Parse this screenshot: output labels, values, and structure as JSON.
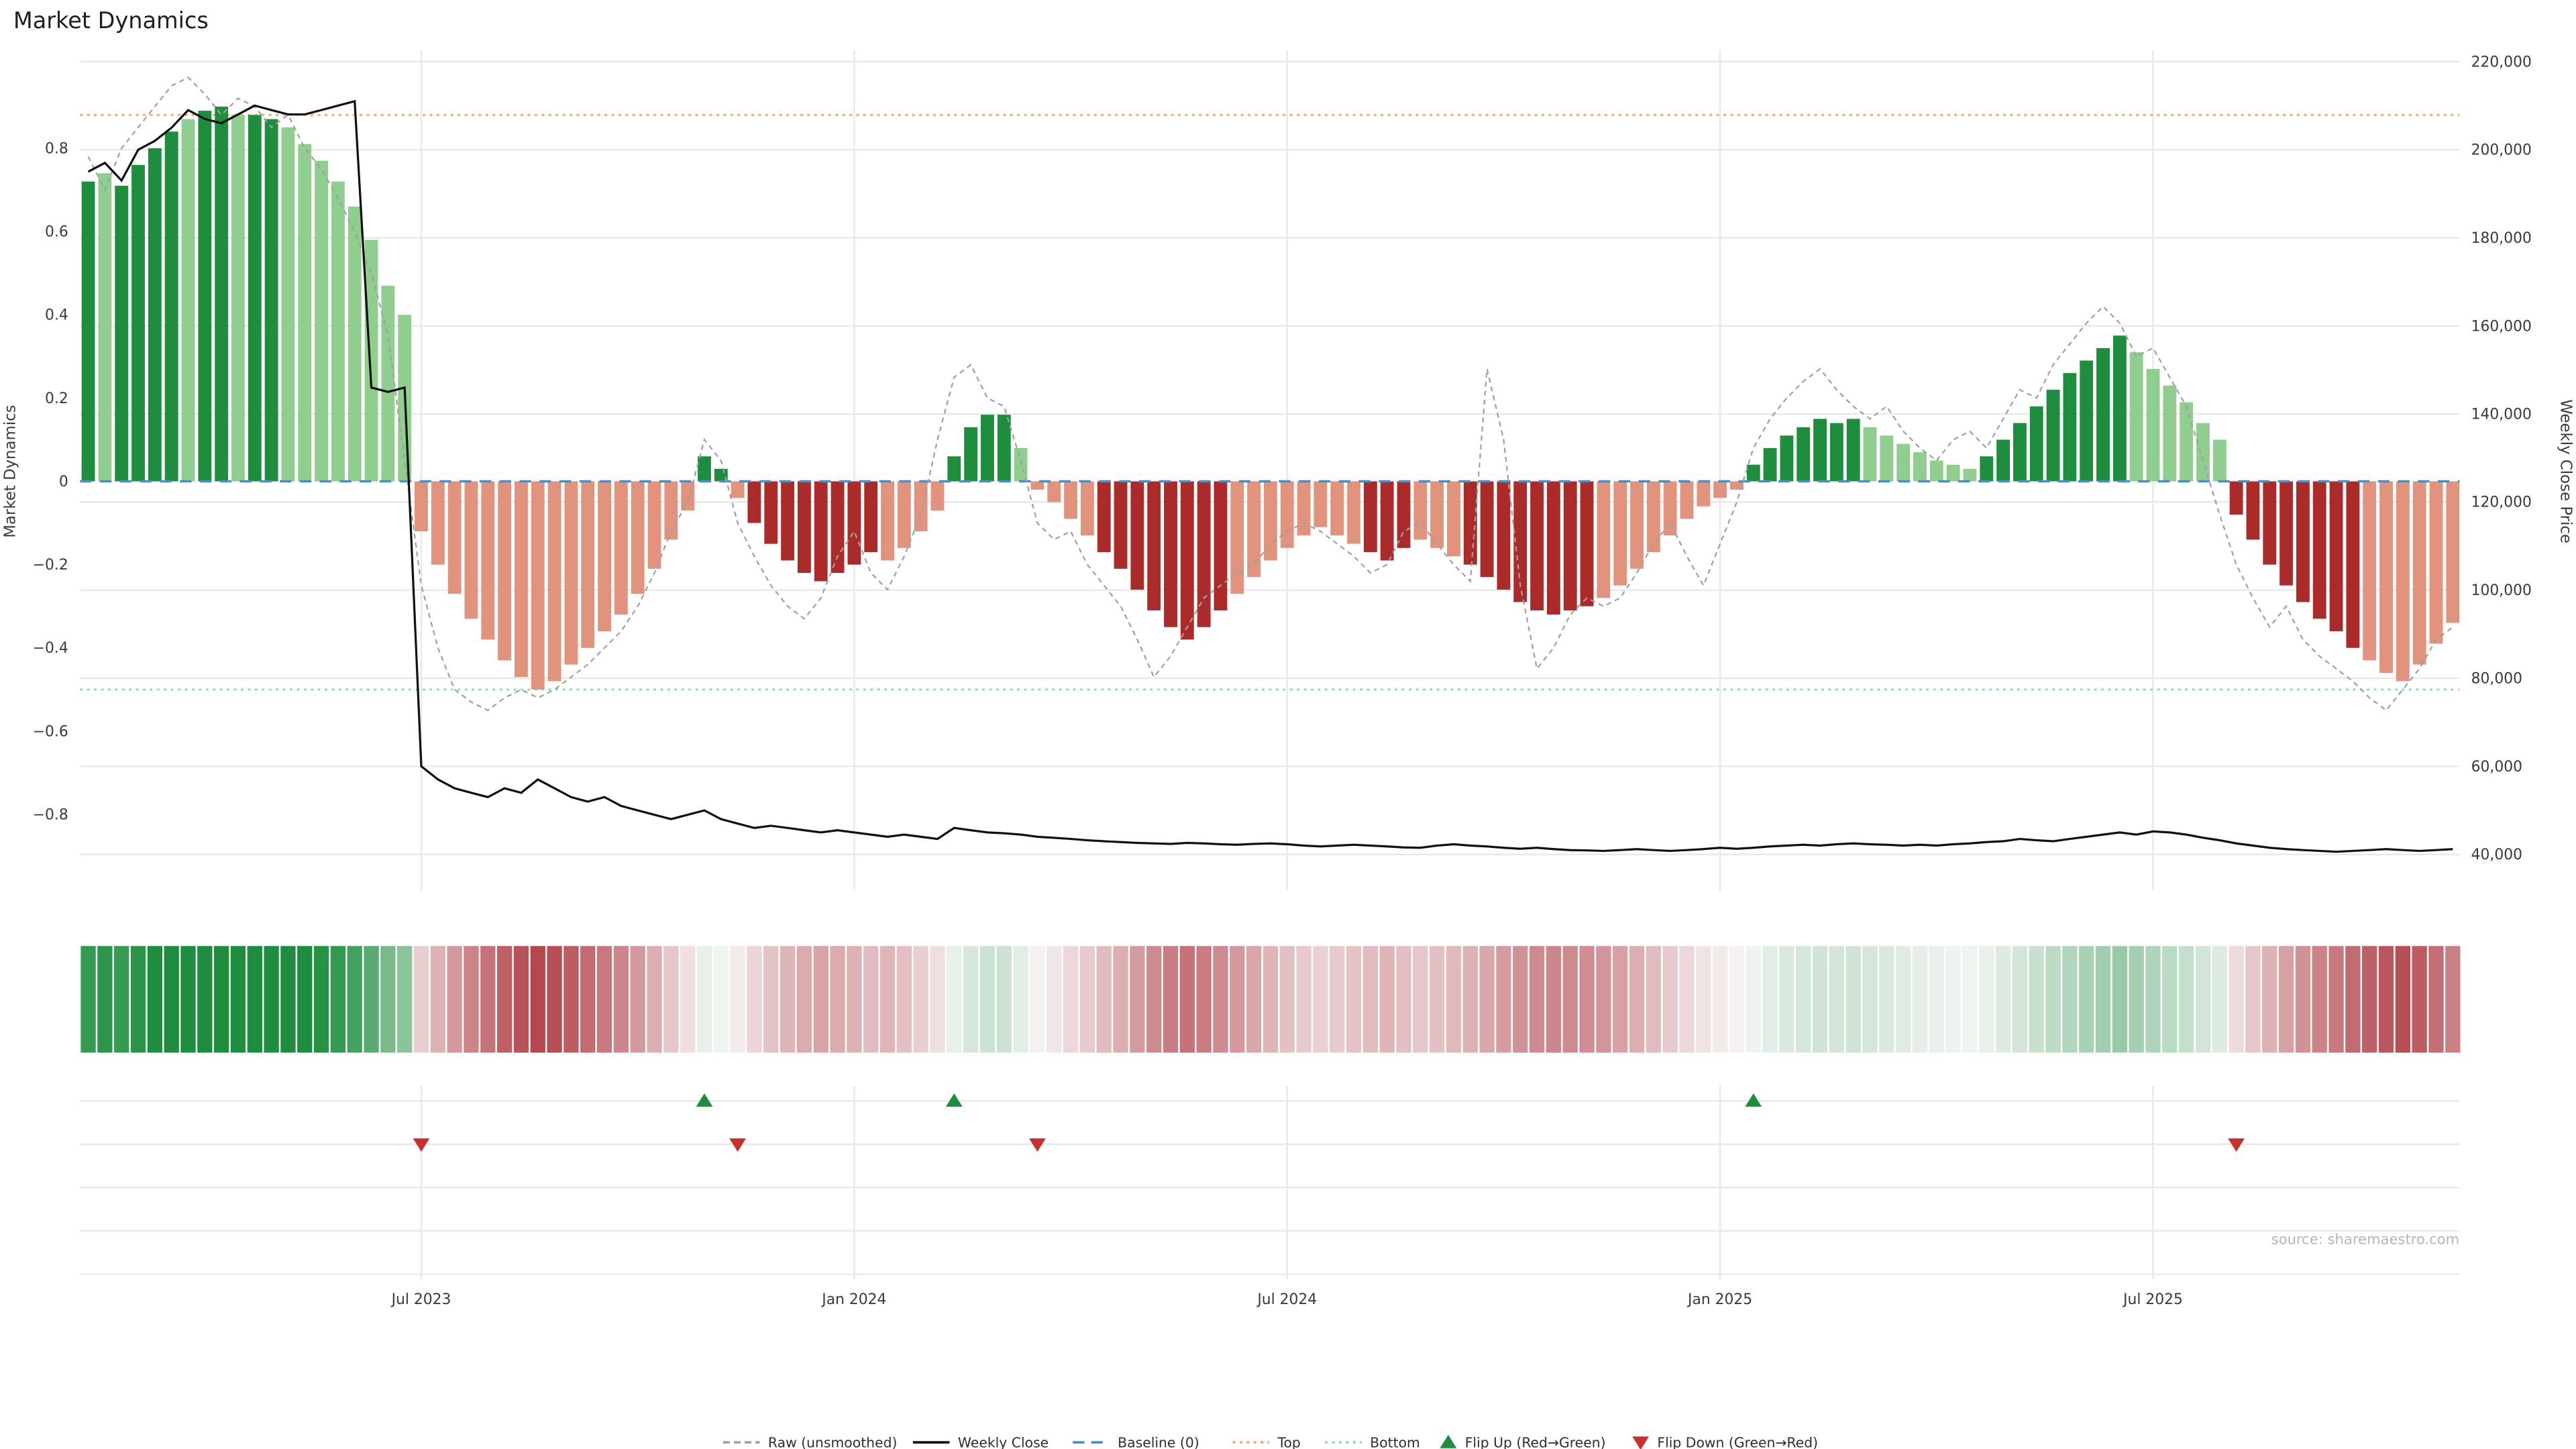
{
  "page": {
    "title": "Market Dynamics",
    "source": "source: sharemaestro.com"
  },
  "colors": {
    "bar_dark_green": "#1e8e3e",
    "bar_light_green": "#8fce8f",
    "bar_dark_red": "#ab2a2a",
    "bar_light_red": "#e2937d",
    "weekly_close_line": "#111111",
    "raw_line": "#a0a0a0",
    "baseline": "#4a8fc0",
    "top_line": "#f0a868",
    "bottom_line": "#8fd0ec",
    "flip_up": "#1e8e3e",
    "flip_down": "#c9302c",
    "grid": "#e9e9e9",
    "heat_green": "#1e8e3e",
    "heat_red": "#b5484f"
  },
  "axes": {
    "left_label": "Market Dynamics",
    "right_label": "Weekly Close Price",
    "left_ticks": [
      0.8,
      0.6,
      0.4,
      0.2,
      0,
      -0.2,
      -0.4,
      -0.6,
      -0.8
    ],
    "left_tick_labels": [
      "0.8",
      "0.6",
      "0.4",
      "0.2",
      "0",
      "−0.2",
      "−0.4",
      "−0.6",
      "−0.8"
    ],
    "right_ticks": [
      220000,
      200000,
      180000,
      160000,
      140000,
      120000,
      100000,
      80000,
      60000,
      40000
    ],
    "right_tick_labels": [
      "220,000",
      "200,000",
      "180,000",
      "160,000",
      "140,000",
      "120,000",
      "100,000",
      "80,000",
      "60,000",
      "40,000"
    ]
  },
  "legend": {
    "items": [
      {
        "label": "Raw (unsmoothed)",
        "marker": "line-dashed",
        "color": "#a0a0a0"
      },
      {
        "label": "Weekly Close",
        "marker": "line-solid",
        "color": "#111111"
      },
      {
        "label": "Baseline (0)",
        "marker": "line-dash",
        "color": "#4a8fc0"
      },
      {
        "label": "Top",
        "marker": "line-dotted",
        "color": "#f0a868"
      },
      {
        "label": "Bottom",
        "marker": "line-dotted",
        "color": "#8fd0ec"
      },
      {
        "label": "Flip Up (Red→Green)",
        "marker": "triangle-up",
        "color": "#1e8e3e"
      },
      {
        "label": "Flip Down (Green→Red)",
        "marker": "triangle-down",
        "color": "#c9302c"
      }
    ]
  },
  "chart_data": {
    "type": "bar+line",
    "title": "Market Dynamics",
    "x_axis": {
      "unit": "weekly",
      "n_points": 143,
      "tick_weeks": [
        20,
        46,
        72,
        98,
        124
      ],
      "tick_labels": [
        "Jul 2023",
        "Jan 2024",
        "Jul 2024",
        "Jan 2025",
        "Jul 2025"
      ]
    },
    "left_axis": {
      "label": "Market Dynamics",
      "range": [
        -0.98,
        1.04
      ]
    },
    "right_axis": {
      "label": "Weekly Close Price",
      "range": [
        40000,
        220000
      ]
    },
    "reference_lines": {
      "baseline": 0,
      "top": 0.88,
      "bottom": -0.5
    },
    "bars": {
      "name": "Market Dynamics (smoothed)",
      "tone_key": {
        "D": "dark-green",
        "g": "light-green",
        "R": "dark-red",
        "r": "light-red"
      },
      "tones": "DgDDDDgDDgDDggggggggrrrrrrrrrrrrrrrrrDDrRRRRRRRRrrrrDDDDgrrrrRRRRRRRRrrrrrrrrRRRrrrRRRRRRRRrrrrrrrrrDDDDDDDgggggggDDDDDDDDDggggggRRRRRRRRrrrrrr",
      "values": [
        0.72,
        0.74,
        0.71,
        0.76,
        0.8,
        0.84,
        0.87,
        0.89,
        0.9,
        0.88,
        0.88,
        0.87,
        0.85,
        0.81,
        0.77,
        0.72,
        0.66,
        0.58,
        0.47,
        0.4,
        -0.12,
        -0.2,
        -0.27,
        -0.33,
        -0.38,
        -0.43,
        -0.47,
        -0.5,
        -0.48,
        -0.44,
        -0.4,
        -0.36,
        -0.32,
        -0.27,
        -0.21,
        -0.14,
        -0.07,
        0.06,
        0.03,
        -0.04,
        -0.1,
        -0.15,
        -0.19,
        -0.22,
        -0.24,
        -0.22,
        -0.2,
        -0.17,
        -0.19,
        -0.16,
        -0.12,
        -0.07,
        0.06,
        0.13,
        0.16,
        0.16,
        0.08,
        -0.02,
        -0.05,
        -0.09,
        -0.13,
        -0.17,
        -0.21,
        -0.26,
        -0.31,
        -0.35,
        -0.38,
        -0.35,
        -0.31,
        -0.27,
        -0.23,
        -0.19,
        -0.16,
        -0.13,
        -0.11,
        -0.13,
        -0.15,
        -0.17,
        -0.19,
        -0.16,
        -0.14,
        -0.16,
        -0.18,
        -0.2,
        -0.23,
        -0.26,
        -0.29,
        -0.31,
        -0.32,
        -0.31,
        -0.3,
        -0.28,
        -0.25,
        -0.21,
        -0.17,
        -0.13,
        -0.09,
        -0.06,
        -0.04,
        -0.02,
        0.04,
        0.08,
        0.11,
        0.13,
        0.15,
        0.14,
        0.15,
        0.13,
        0.11,
        0.09,
        0.07,
        0.05,
        0.04,
        0.03,
        0.06,
        0.1,
        0.14,
        0.18,
        0.22,
        0.26,
        0.29,
        0.32,
        0.35,
        0.31,
        0.27,
        0.23,
        0.19,
        0.14,
        0.1,
        -0.08,
        -0.14,
        -0.2,
        -0.25,
        -0.29,
        -0.33,
        -0.36,
        -0.4,
        -0.43,
        -0.46,
        -0.48,
        -0.44,
        -0.39,
        -0.34
      ]
    },
    "raw": {
      "name": "Raw (unsmoothed)",
      "values": [
        0.78,
        0.7,
        0.8,
        0.85,
        0.9,
        0.95,
        0.97,
        0.93,
        0.88,
        0.92,
        0.9,
        0.85,
        0.88,
        0.8,
        0.75,
        0.68,
        0.6,
        0.5,
        0.35,
        0.05,
        -0.25,
        -0.4,
        -0.5,
        -0.53,
        -0.55,
        -0.52,
        -0.5,
        -0.52,
        -0.5,
        -0.47,
        -0.44,
        -0.4,
        -0.36,
        -0.3,
        -0.22,
        -0.12,
        -0.05,
        0.1,
        0.05,
        -0.1,
        -0.18,
        -0.25,
        -0.3,
        -0.33,
        -0.28,
        -0.18,
        -0.12,
        -0.22,
        -0.26,
        -0.18,
        -0.08,
        0.1,
        0.25,
        0.28,
        0.2,
        0.18,
        0.05,
        -0.1,
        -0.14,
        -0.12,
        -0.2,
        -0.25,
        -0.3,
        -0.38,
        -0.47,
        -0.42,
        -0.35,
        -0.28,
        -0.25,
        -0.22,
        -0.2,
        -0.15,
        -0.12,
        -0.1,
        -0.12,
        -0.15,
        -0.18,
        -0.22,
        -0.2,
        -0.12,
        -0.1,
        -0.15,
        -0.2,
        -0.24,
        0.27,
        0.1,
        -0.25,
        -0.45,
        -0.4,
        -0.32,
        -0.28,
        -0.3,
        -0.28,
        -0.22,
        -0.15,
        -0.1,
        -0.18,
        -0.25,
        -0.15,
        -0.05,
        0.08,
        0.15,
        0.2,
        0.24,
        0.27,
        0.22,
        0.18,
        0.15,
        0.18,
        0.12,
        0.08,
        0.05,
        0.1,
        0.12,
        0.08,
        0.15,
        0.22,
        0.2,
        0.28,
        0.33,
        0.38,
        0.42,
        0.38,
        0.3,
        0.32,
        0.25,
        0.18,
        0.05,
        -0.08,
        -0.2,
        -0.28,
        -0.35,
        -0.3,
        -0.38,
        -0.42,
        -0.45,
        -0.48,
        -0.52,
        -0.55,
        -0.5,
        -0.45,
        -0.38,
        -0.35
      ]
    },
    "weekly_close": {
      "name": "Weekly Close",
      "values": [
        195000,
        197000,
        193000,
        200000,
        202000,
        205000,
        209000,
        207000,
        206000,
        208000,
        210000,
        209000,
        208000,
        208000,
        209000,
        210000,
        211000,
        146000,
        145000,
        146000,
        60000,
        57000,
        55000,
        54000,
        53000,
        55000,
        54000,
        57000,
        55000,
        53000,
        52000,
        53000,
        51000,
        50000,
        49000,
        48000,
        49000,
        50000,
        48000,
        47000,
        46000,
        46500,
        46000,
        45500,
        45000,
        45500,
        45000,
        44500,
        44000,
        44500,
        44000,
        43500,
        46000,
        45500,
        45000,
        44800,
        44500,
        44000,
        43800,
        43500,
        43200,
        43000,
        42800,
        42600,
        42500,
        42400,
        42600,
        42500,
        42300,
        42200,
        42400,
        42500,
        42300,
        42000,
        41800,
        42000,
        42200,
        42000,
        41800,
        41600,
        41500,
        42000,
        42300,
        42000,
        41800,
        41500,
        41300,
        41500,
        41200,
        41000,
        40900,
        40800,
        41000,
        41200,
        41000,
        40800,
        41000,
        41200,
        41500,
        41300,
        41500,
        41800,
        42000,
        42200,
        42000,
        42300,
        42500,
        42300,
        42200,
        42000,
        42200,
        42000,
        42300,
        42500,
        42800,
        43000,
        43500,
        43200,
        43000,
        43500,
        44000,
        44500,
        45000,
        44500,
        45200,
        45000,
        44500,
        43800,
        43200,
        42500,
        42000,
        41500,
        41200,
        41000,
        40800,
        40600,
        40800,
        41000,
        41200,
        41000,
        40800,
        41000,
        41200
      ]
    },
    "flip_up_weeks": [
      37,
      52,
      100
    ],
    "flip_down_weeks": [
      20,
      39,
      57,
      129
    ],
    "heatmap": {
      "description": "weekly color strip derived from bar values: green intensity for positive, red intensity for negative"
    }
  }
}
